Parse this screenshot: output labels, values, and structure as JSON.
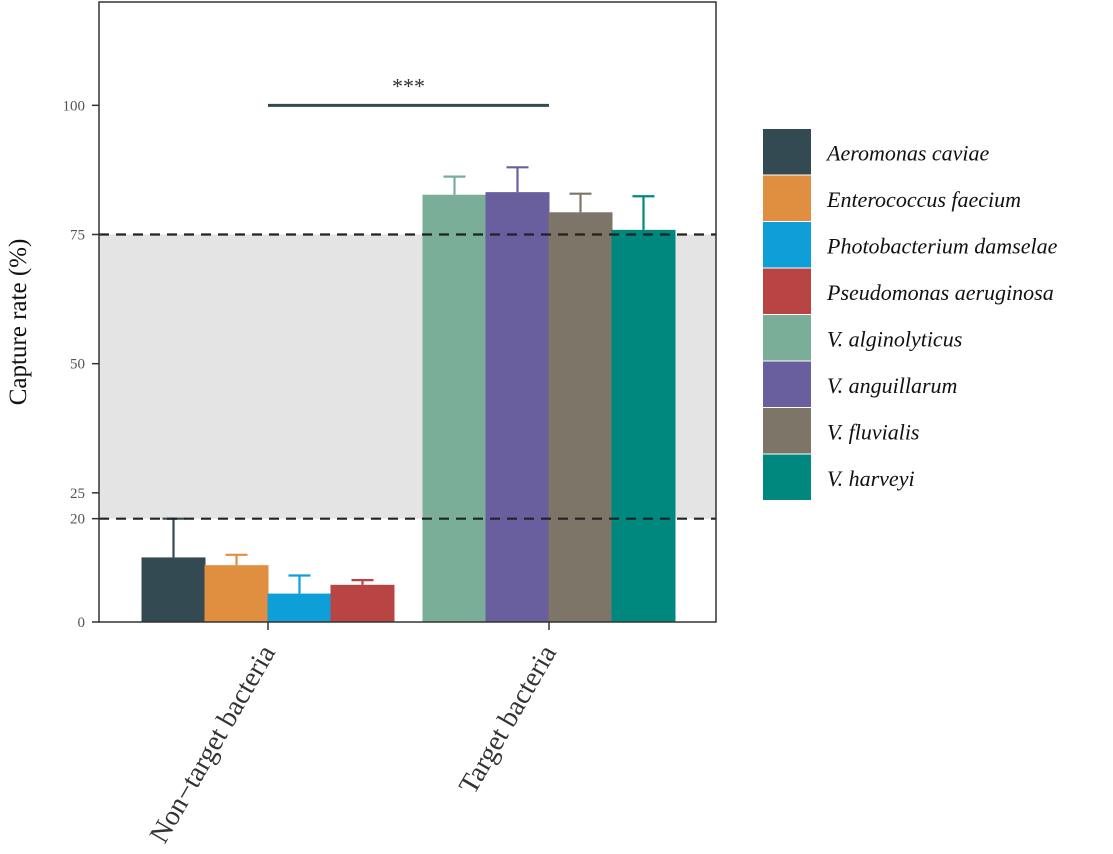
{
  "chart_data": {
    "type": "bar",
    "ylabel": "Capture rate (%)",
    "ylim": [
      0,
      120
    ],
    "yticks": [
      0,
      20,
      25,
      50,
      75,
      100
    ],
    "categories": [
      "Non−target bacteria",
      "Target bacteria"
    ],
    "series": [
      {
        "name": "Aeromonas caviae",
        "category": "Non−target bacteria",
        "value": 12.5,
        "error": 7.5,
        "color": "#344a53"
      },
      {
        "name": "Enterococcus faecium",
        "category": "Non−target bacteria",
        "value": 11.0,
        "error": 2.0,
        "color": "#e08e40"
      },
      {
        "name": "Photobacterium damselae",
        "category": "Non−target bacteria",
        "value": 5.5,
        "error": 3.5,
        "color": "#0f9fd8"
      },
      {
        "name": "Pseudomonas aeruginosa",
        "category": "Non−target bacteria",
        "value": 7.2,
        "error": 0.9,
        "color": "#b84444"
      },
      {
        "name": "V. alginolyticus",
        "category": "Target bacteria",
        "value": 82.7,
        "error": 3.5,
        "color": "#7aae98"
      },
      {
        "name": "V. anguillarum",
        "category": "Target bacteria",
        "value": 83.2,
        "error": 4.8,
        "color": "#6a5f9e"
      },
      {
        "name": "V. fluvialis",
        "category": "Target bacteria",
        "value": 79.3,
        "error": 3.6,
        "color": "#7c7568"
      },
      {
        "name": "V. harveyi",
        "category": "Target bacteria",
        "value": 75.9,
        "error": 6.5,
        "color": "#00887f"
      }
    ],
    "shaded_band": {
      "from": 20,
      "to": 75,
      "color": "#e4e4e4"
    },
    "reference_lines": [
      20,
      75
    ],
    "significance": {
      "label": "***",
      "y": 100,
      "between": [
        "Non−target bacteria",
        "Target bacteria"
      ]
    },
    "legend": {
      "position": "right"
    }
  }
}
